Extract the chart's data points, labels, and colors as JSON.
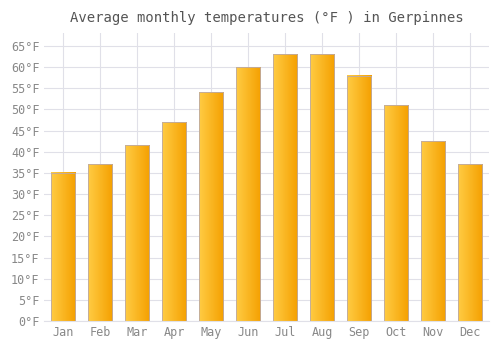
{
  "title": "Average monthly temperatures (°F ) in Gerpinnes",
  "months": [
    "Jan",
    "Feb",
    "Mar",
    "Apr",
    "May",
    "Jun",
    "Jul",
    "Aug",
    "Sep",
    "Oct",
    "Nov",
    "Dec"
  ],
  "values": [
    35.0,
    37.0,
    41.5,
    47.0,
    54.0,
    60.0,
    63.0,
    63.0,
    58.0,
    51.0,
    42.5,
    37.0
  ],
  "bar_color_left": "#FFCC44",
  "bar_color_right": "#F5A000",
  "bar_edge_color": "#BBAAAA",
  "background_color": "#FFFFFF",
  "grid_color": "#E0E0E8",
  "tick_label_color": "#888888",
  "title_color": "#555555",
  "ylim": [
    0,
    68
  ],
  "yticks": [
    0,
    5,
    10,
    15,
    20,
    25,
    30,
    35,
    40,
    45,
    50,
    55,
    60,
    65
  ],
  "title_fontsize": 10,
  "tick_fontsize": 8.5,
  "figsize": [
    5.0,
    3.5
  ],
  "dpi": 100
}
